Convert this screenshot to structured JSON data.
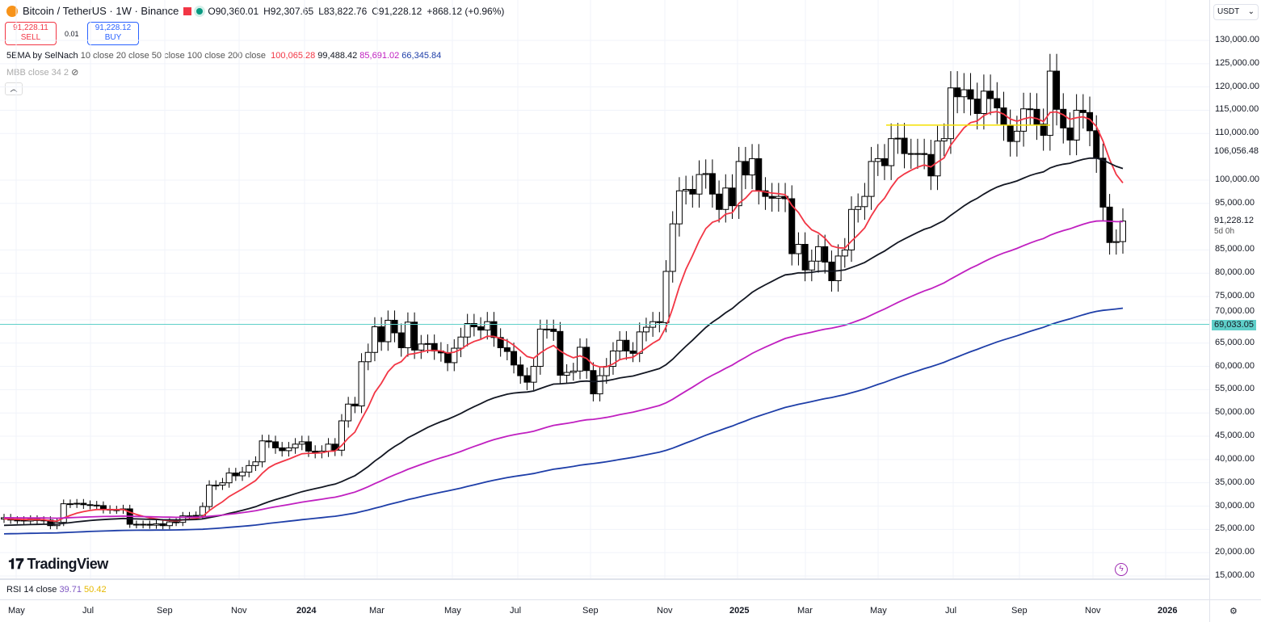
{
  "header": {
    "symbol": "Bitcoin / TetherUS · 1W · Binance",
    "open": "O90,360.01",
    "high": "H92,307.65",
    "low": "L83,822.76",
    "close": "C91,228.12",
    "change": "+868.12 (+0.96%)"
  },
  "trade": {
    "sell_price": "91,228.11",
    "sell_label": "SELL",
    "spread": "0.01",
    "buy_price": "91,228.12",
    "buy_label": "BUY"
  },
  "indicators": {
    "ema_name": "5EMA by SelNach",
    "ema_params": "10 close 20 close 50 close 100 close 200 close",
    "ema_values": [
      "100,065.28",
      "99,488.42",
      "85,691.02",
      "66,345.84"
    ],
    "ema_colors": [
      "#f23645",
      "#131722",
      "#c020c0",
      "#1e3ea8"
    ],
    "mbb": "MBB close 34 2",
    "rsi_name": "RSI 14 close",
    "rsi_values": [
      "39.71",
      "50.42"
    ],
    "rsi_colors": [
      "#7e57c2",
      "#f5c518"
    ]
  },
  "currency": "USDT",
  "brand": "TradingView",
  "chart_data": {
    "type": "candlestick",
    "ylim": [
      15000,
      130000
    ],
    "y_ticks": [
      "130,000.00",
      "125,000.00",
      "120,000.00",
      "115,000.00",
      "110,000.00",
      "100,000.00",
      "95,000.00",
      "85,000.00",
      "80,000.00",
      "75,000.00",
      "70,000.00",
      "65,000.00",
      "60,000.00",
      "55,000.00",
      "50,000.00",
      "45,000.00",
      "40,000.00",
      "35,000.00",
      "30,000.00",
      "25,000.00",
      "20,000.00",
      "15,000.00"
    ],
    "y_tick_values": [
      130000,
      125000,
      120000,
      115000,
      110000,
      100000,
      95000,
      85000,
      80000,
      75000,
      70000,
      65000,
      60000,
      55000,
      50000,
      45000,
      40000,
      35000,
      30000,
      25000,
      20000,
      15000
    ],
    "x_ticks": [
      "May",
      "Jul",
      "Sep",
      "Nov",
      "2024",
      "Mar",
      "May",
      "Jul",
      "Sep",
      "Nov",
      "2025",
      "Mar",
      "May",
      "Jul",
      "Sep",
      "Nov",
      "2026"
    ],
    "weekly_closes_k": [
      27.5,
      27,
      27,
      26.8,
      27.2,
      26.9,
      27,
      25.8,
      26.5,
      30.5,
      30.5,
      30.6,
      30.3,
      30.2,
      30.1,
      29.3,
      29.2,
      29.2,
      29.4,
      26.1,
      26,
      26.1,
      25.9,
      26.2,
      25.8,
      26.6,
      26.5,
      27.9,
      27.9,
      28,
      29.9,
      34.5,
      34.5,
      35,
      37.1,
      36.5,
      37.3,
      38.7,
      39.5,
      44,
      43.8,
      42.5,
      41.9,
      42.5,
      43.3,
      43.8,
      41.8,
      41.5,
      41.8,
      43.3,
      42,
      48.3,
      51.9,
      51.5,
      61,
      63,
      68.5,
      65.3,
      69.9,
      67.2,
      64,
      69.5,
      63.5,
      64.8,
      64.9,
      63.3,
      62.9,
      60.8,
      63.9,
      66.3,
      69.2,
      68.5,
      67.8,
      69.6,
      66.2,
      64,
      63.2,
      60.3,
      58,
      56.6,
      60,
      68,
      68,
      67.5,
      58.1,
      58.7,
      59,
      64.1,
      59.1,
      54.1,
      58,
      60,
      63.3,
      65.6,
      63.3,
      62.8,
      67.4,
      68.4,
      69.6,
      69.4,
      80.4,
      90.6,
      97.7,
      98,
      97,
      101.2,
      101.4,
      97,
      93.7,
      98.3,
      94.5,
      104,
      101.1,
      104.6,
      97.7,
      96.5,
      96.1,
      96.5,
      96,
      84.2,
      86.2,
      80.7,
      82.6,
      85.7,
      82.4,
      78.4,
      83.7,
      85,
      93.7,
      94.3,
      96.5,
      104,
      104.6,
      103.1,
      108.9,
      109,
      105.7,
      105.6,
      105.7,
      105.5,
      100.9,
      108.4,
      108.9,
      119.8,
      117.9,
      119.4,
      117.4,
      114.3,
      119.1,
      117.5,
      115.5,
      111.8,
      108.3,
      110.5,
      115.3,
      115.2,
      112,
      109.6,
      123.4,
      115.2,
      111.2,
      108.6,
      115,
      114.5,
      110.6,
      104.7,
      94.2,
      86.6,
      86.8,
      91.2
    ],
    "horizontal_lines": [
      {
        "price": 69033.05,
        "label": "69,033.05",
        "color": "#5fcfc9"
      },
      {
        "price": 111800,
        "color": "#f5e000"
      }
    ],
    "scale_labels": [
      {
        "price": 106056.48,
        "label": "106,056.48"
      },
      {
        "price": 91228.12,
        "label": "91,228.12",
        "sub": "5d 0h"
      }
    ],
    "ema_periods": [
      10,
      20,
      50,
      100,
      200
    ]
  }
}
